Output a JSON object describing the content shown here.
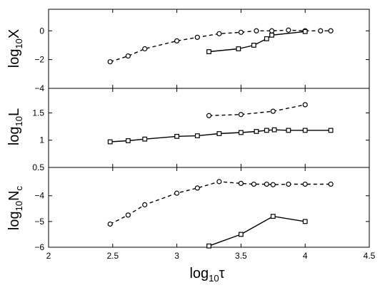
{
  "chart_data": {
    "type": "line",
    "shared_x": {
      "xlabel_base": "log",
      "xlabel_sub": "10",
      "xlabel_var": "τ",
      "xlim": [
        2,
        4.5
      ],
      "xticks": [
        2,
        2.5,
        3,
        3.5,
        4,
        4.5
      ],
      "xtick_labels": [
        "2",
        "2.5",
        "3",
        "3.5",
        "4",
        "4.5"
      ]
    },
    "panels": [
      {
        "ylabel_base": "log",
        "ylabel_sub": "10",
        "ylabel_var": "X",
        "ylim": [
          -4,
          1.5
        ],
        "yticks": [
          -4,
          -2,
          0
        ],
        "ytick_labels": [
          "−4",
          "−2",
          "0"
        ],
        "series": [
          {
            "style": "dashed-circle",
            "x": [
              2.48,
              2.62,
              2.75,
              3.0,
              3.16,
              3.33,
              3.5,
              3.62,
              3.74,
              3.87,
              4.0,
              4.12,
              4.2
            ],
            "y": [
              -2.15,
              -1.75,
              -1.25,
              -0.7,
              -0.45,
              -0.2,
              -0.1,
              0.0,
              0.0,
              0.05,
              0.0,
              0.0,
              0.0
            ]
          },
          {
            "style": "solid-square",
            "x": [
              3.25,
              3.48,
              3.6,
              3.7,
              3.74,
              4.0
            ],
            "y": [
              -1.45,
              -1.25,
              -1.0,
              -0.55,
              -0.3,
              -0.05
            ]
          }
        ]
      },
      {
        "ylabel_base": "log",
        "ylabel_sub": "10",
        "ylabel_var": "L",
        "ylim": [
          0.5,
          1.95
        ],
        "yticks": [
          0.5,
          1,
          1.5
        ],
        "ytick_labels": [
          "0.5",
          "1",
          "1.5"
        ],
        "series": [
          {
            "style": "dashed-circle",
            "x": [
              3.25,
              3.5,
              3.75,
              4.0
            ],
            "y": [
              1.45,
              1.47,
              1.53,
              1.65
            ]
          },
          {
            "style": "solid-square",
            "x": [
              2.48,
              2.62,
              2.75,
              3.0,
              3.16,
              3.33,
              3.5,
              3.62,
              3.7,
              3.76,
              3.87,
              4.0,
              4.2
            ],
            "y": [
              0.97,
              0.99,
              1.02,
              1.07,
              1.08,
              1.12,
              1.14,
              1.16,
              1.18,
              1.19,
              1.18,
              1.18,
              1.18
            ]
          }
        ]
      },
      {
        "ylabel_base": "log",
        "ylabel_sub": "10",
        "ylabel_var": "N",
        "ylabel_var_sub": "c",
        "ylim": [
          -6,
          -2.9
        ],
        "yticks": [
          -6,
          -5,
          -4
        ],
        "ytick_labels": [
          "−6",
          "−5",
          "−4"
        ],
        "series": [
          {
            "style": "dashed-circle",
            "x": [
              2.48,
              2.62,
              2.75,
              3.0,
              3.16,
              3.33,
              3.5,
              3.6,
              3.7,
              3.75,
              3.87,
              4.0,
              4.2
            ],
            "y": [
              -5.1,
              -4.75,
              -4.35,
              -3.9,
              -3.7,
              -3.45,
              -3.52,
              -3.55,
              -3.55,
              -3.57,
              -3.55,
              -3.55,
              -3.55
            ]
          },
          {
            "style": "solid-square",
            "x": [
              3.25,
              3.5,
              3.75,
              4.0
            ],
            "y": [
              -5.95,
              -5.5,
              -4.8,
              -5.0
            ]
          }
        ]
      }
    ]
  }
}
